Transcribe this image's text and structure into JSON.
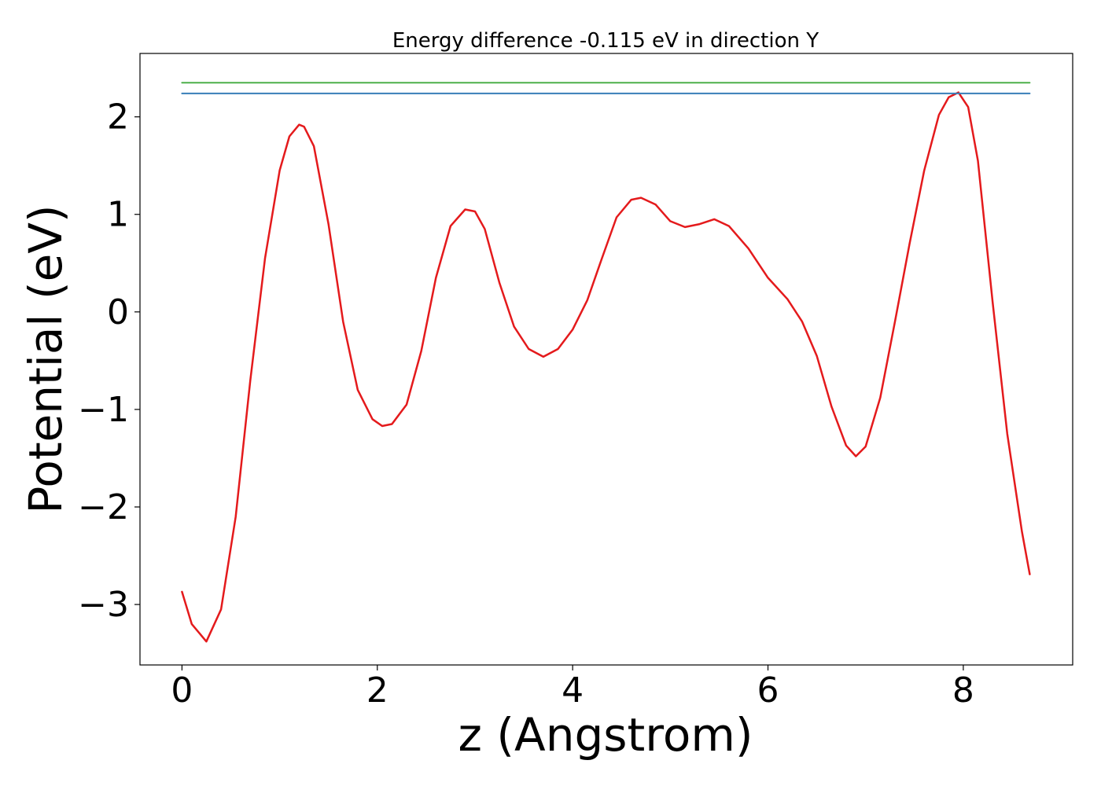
{
  "chart_data": {
    "type": "line",
    "title": "Energy difference -0.115 eV in direction Y",
    "xlabel": "z (Angstrom)",
    "ylabel": "Potential (eV)",
    "xlim": [
      -0.43,
      9.12
    ],
    "ylim": [
      -3.62,
      2.65
    ],
    "x_ticks": [
      0,
      2,
      4,
      6,
      8
    ],
    "x_tick_labels": [
      "0",
      "2",
      "4",
      "6",
      "8"
    ],
    "y_ticks": [
      -3,
      -2,
      -1,
      0,
      1,
      2
    ],
    "y_tick_labels": [
      "−3",
      "−2",
      "−1",
      "0",
      "1",
      "2"
    ],
    "grid": false,
    "series": [
      {
        "color": "#e41a1c",
        "x": [
          0.0,
          0.1,
          0.25,
          0.4,
          0.55,
          0.7,
          0.85,
          1.0,
          1.1,
          1.2,
          1.25,
          1.35,
          1.5,
          1.65,
          1.8,
          1.95,
          2.05,
          2.15,
          2.3,
          2.45,
          2.6,
          2.75,
          2.9,
          3.0,
          3.1,
          3.25,
          3.4,
          3.55,
          3.7,
          3.85,
          4.0,
          4.15,
          4.3,
          4.45,
          4.6,
          4.7,
          4.85,
          5.0,
          5.15,
          5.3,
          5.45,
          5.6,
          5.8,
          6.0,
          6.2,
          6.35,
          6.5,
          6.65,
          6.8,
          6.9,
          7.0,
          7.15,
          7.3,
          7.45,
          7.6,
          7.75,
          7.85,
          7.95,
          8.05,
          8.15,
          8.3,
          8.45,
          8.6,
          8.68
        ],
        "y": [
          -2.87,
          -3.2,
          -3.38,
          -3.05,
          -2.1,
          -0.7,
          0.55,
          1.45,
          1.8,
          1.92,
          1.9,
          1.7,
          0.9,
          -0.1,
          -0.8,
          -1.1,
          -1.17,
          -1.15,
          -0.95,
          -0.4,
          0.35,
          0.88,
          1.05,
          1.03,
          0.85,
          0.3,
          -0.15,
          -0.38,
          -0.46,
          -0.38,
          -0.18,
          0.12,
          0.55,
          0.97,
          1.15,
          1.17,
          1.1,
          0.93,
          0.87,
          0.9,
          0.95,
          0.88,
          0.65,
          0.35,
          0.13,
          -0.1,
          -0.45,
          -0.97,
          -1.37,
          -1.48,
          -1.38,
          -0.88,
          -0.1,
          0.7,
          1.45,
          2.02,
          2.2,
          2.25,
          2.1,
          1.55,
          0.1,
          -1.25,
          -2.25,
          -2.69
        ]
      },
      {
        "color": "#4daf4a",
        "x": [
          0.0,
          8.68
        ],
        "y": [
          2.35,
          2.35
        ]
      },
      {
        "color": "#377eb8",
        "x": [
          0.0,
          8.68
        ],
        "y": [
          2.24,
          2.24
        ]
      }
    ]
  }
}
